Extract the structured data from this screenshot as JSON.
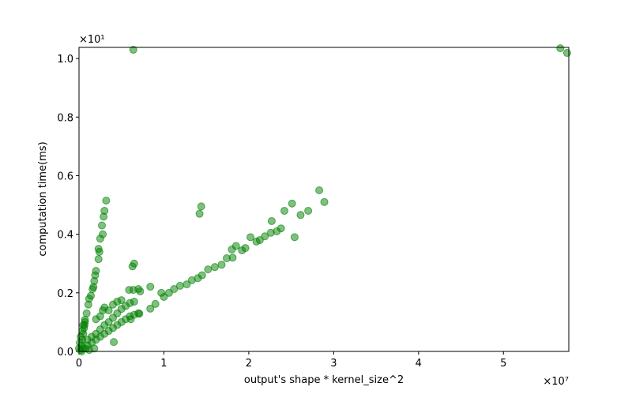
{
  "chart_data": {
    "type": "scatter",
    "xlabel": "output's shape * kernel_size^2",
    "ylabel": "computation time(ms)",
    "x_offset_label": "×10⁷",
    "y_offset_label": "×10¹",
    "xlim": [
      0,
      5.77
    ],
    "ylim": [
      0,
      1.038
    ],
    "xticks": [
      0,
      1,
      2,
      3,
      4,
      5
    ],
    "yticks": [
      {
        "value": 0,
        "label": "0.0"
      },
      {
        "value": 0.2,
        "label": "0.2"
      },
      {
        "value": 0.4,
        "label": "0.4"
      },
      {
        "value": 0.6,
        "label": "0.6"
      },
      {
        "value": 0.8,
        "label": "0.8"
      },
      {
        "value": 1.0,
        "label": "1.0"
      }
    ],
    "series": [
      {
        "color": "#008000",
        "x": [
          0.64,
          5.67,
          5.75,
          0.32,
          0.3,
          0.29,
          0.27,
          0.28,
          0.25,
          0.23,
          0.24,
          0.23,
          0.2,
          0.19,
          0.18,
          0.17,
          0.16,
          0.14,
          0.12,
          0.11,
          0.09,
          0.07,
          0.065,
          0.65,
          0.63,
          1.44,
          1.42,
          2.83,
          2.89,
          2.51,
          2.42,
          2.7,
          2.61,
          2.27,
          2.54,
          2.38,
          2.33,
          2.26,
          2.19,
          2.13,
          2.09,
          2.02,
          1.96,
          1.92,
          1.85,
          1.8,
          1.81,
          1.74,
          1.68,
          1.6,
          1.52,
          1.45,
          1.4,
          1.33,
          1.27,
          1.19,
          1.12,
          1.06,
          1.0,
          0.97,
          0.9,
          0.84,
          0.84,
          0.72,
          0.7,
          0.64,
          0.59,
          0.71,
          0.61,
          0.41,
          0.05,
          0.1,
          0.15,
          0.2,
          0.25,
          0.3,
          0.35,
          0.4,
          0.45,
          0.5,
          0.55,
          0.6,
          0.65,
          0.7,
          0.1,
          0.15,
          0.2,
          0.25,
          0.3,
          0.35,
          0.4,
          0.45,
          0.5,
          0.55,
          0.6,
          0.65,
          0.02,
          0.03,
          0.04,
          0.05,
          0.06,
          0.07,
          0.03,
          0.08,
          0.12,
          0.18,
          0.0,
          0.01,
          0.02,
          0.04,
          0.05,
          0.2,
          0.25,
          0.28,
          0.3,
          0.35,
          0.4,
          0.45,
          0.5
        ],
        "values": [
          1.03,
          1.035,
          1.019,
          0.515,
          0.48,
          0.46,
          0.43,
          0.4,
          0.385,
          0.35,
          0.34,
          0.315,
          0.275,
          0.26,
          0.24,
          0.22,
          0.213,
          0.19,
          0.18,
          0.16,
          0.13,
          0.108,
          0.09,
          0.3,
          0.29,
          0.495,
          0.47,
          0.55,
          0.51,
          0.505,
          0.48,
          0.48,
          0.466,
          0.445,
          0.39,
          0.42,
          0.41,
          0.405,
          0.393,
          0.38,
          0.375,
          0.39,
          0.353,
          0.345,
          0.36,
          0.348,
          0.32,
          0.318,
          0.296,
          0.288,
          0.28,
          0.26,
          0.25,
          0.243,
          0.229,
          0.224,
          0.213,
          0.2,
          0.186,
          0.2,
          0.162,
          0.146,
          0.221,
          0.205,
          0.213,
          0.21,
          0.21,
          0.129,
          0.11,
          0.032,
          0.01,
          0.02,
          0.03,
          0.04,
          0.05,
          0.06,
          0.07,
          0.08,
          0.09,
          0.1,
          0.11,
          0.12,
          0.125,
          0.13,
          0.04,
          0.05,
          0.06,
          0.075,
          0.09,
          0.1,
          0.115,
          0.13,
          0.145,
          0.155,
          0.165,
          0.17,
          0.005,
          0.02,
          0.04,
          0.06,
          0.08,
          0.1,
          0.0,
          0.01,
          0.005,
          0.01,
          0.01,
          0.03,
          0.05,
          0.07,
          0.09,
          0.11,
          0.12,
          0.14,
          0.15,
          0.14,
          0.16,
          0.17,
          0.175
        ]
      }
    ]
  }
}
